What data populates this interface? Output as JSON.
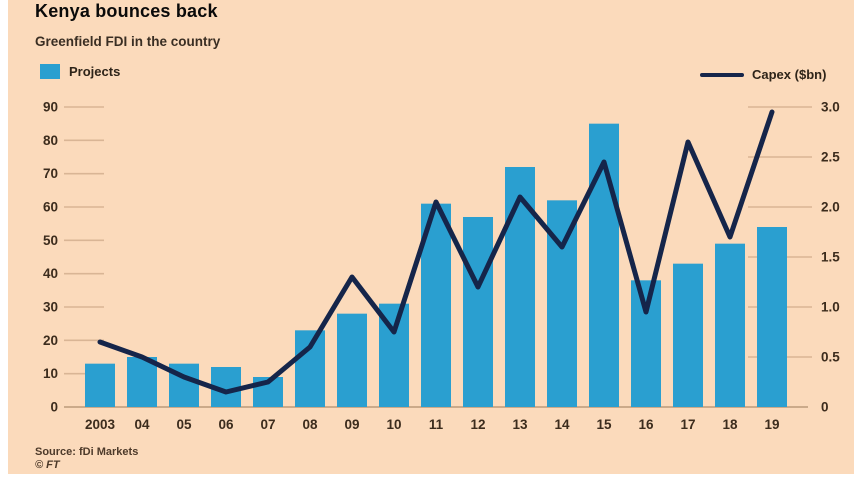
{
  "page": {
    "title": "Kenya bounces back",
    "subtitle": "Greenfield FDI in the country",
    "source": "Source: fDi Markets",
    "copyright": "© FT"
  },
  "legend": {
    "projects_label": "Projects",
    "capex_label": "Capex ($bn)"
  },
  "colors": {
    "background": "#fbdabb",
    "bar": "#2a9fd0",
    "line": "#15254a",
    "axis_text": "#3c2c1d",
    "tick": "#d9b595",
    "baseline": "#bb997a"
  },
  "chart_data": {
    "type": "bar+line combo",
    "title": "Kenya bounces back",
    "subtitle": "Greenfield FDI in the country",
    "categories": [
      "2003",
      "04",
      "05",
      "06",
      "07",
      "08",
      "09",
      "10",
      "11",
      "12",
      "13",
      "14",
      "15",
      "16",
      "17",
      "18",
      "19"
    ],
    "series": [
      {
        "name": "Projects",
        "type": "bar",
        "axis": "left",
        "values": [
          13,
          15,
          13,
          12,
          9,
          23,
          28,
          31,
          61,
          57,
          72,
          62,
          85,
          38,
          43,
          49,
          54
        ]
      },
      {
        "name": "Capex ($bn)",
        "type": "line",
        "axis": "right",
        "values": [
          0.65,
          0.5,
          0.3,
          0.15,
          0.25,
          0.6,
          1.3,
          0.75,
          2.05,
          1.2,
          2.1,
          1.6,
          2.45,
          0.95,
          2.65,
          1.7,
          2.95
        ]
      }
    ],
    "left_axis": {
      "min": 0,
      "max": 90,
      "step": 10,
      "tick_labels": [
        "0",
        "10",
        "20",
        "30",
        "40",
        "50",
        "60",
        "70",
        "80",
        "90"
      ]
    },
    "right_axis": {
      "min": 0,
      "max": 3.0,
      "step": 0.5,
      "tick_labels": [
        "0",
        "0.5",
        "1.0",
        "1.5",
        "2.0",
        "2.5",
        "3.0"
      ]
    },
    "grid": "short tick dashes on both axes, full baseline at 0",
    "legend_position": "top, projects left / capex right",
    "source": "Source: fDi Markets"
  }
}
